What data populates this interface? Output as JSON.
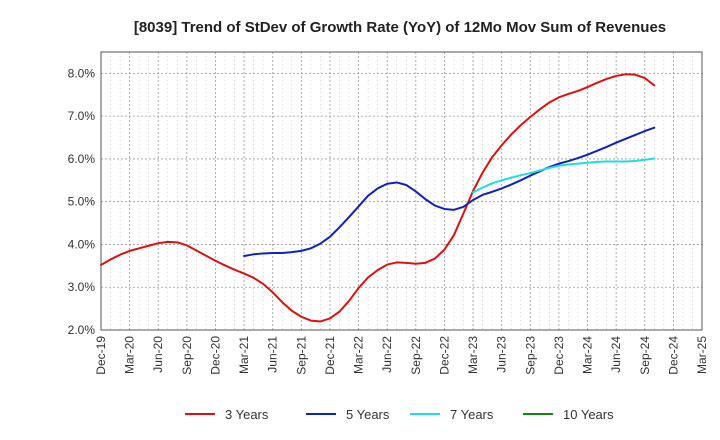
{
  "chart_data": {
    "type": "line",
    "title": "[8039]  Trend of StDev of Growth Rate (YoY) of 12Mo Mov Sum of Revenues",
    "xlabel": "",
    "ylabel": "",
    "ylim": [
      2.0,
      8.5
    ],
    "y_ticks": [
      2.0,
      3.0,
      4.0,
      5.0,
      6.0,
      7.0,
      8.0
    ],
    "y_tick_labels": [
      "2.0%",
      "3.0%",
      "4.0%",
      "5.0%",
      "6.0%",
      "7.0%",
      "8.0%"
    ],
    "x_tick_labels": [
      "Dec-19",
      "Mar-20",
      "Jun-20",
      "Sep-20",
      "Dec-20",
      "Mar-21",
      "Jun-21",
      "Sep-21",
      "Dec-21",
      "Mar-22",
      "Jun-22",
      "Sep-22",
      "Dec-22",
      "Mar-23",
      "Jun-23",
      "Sep-23",
      "Dec-23",
      "Mar-24",
      "Jun-24",
      "Sep-24",
      "Dec-24",
      "Mar-25"
    ],
    "x_range_months": [
      0,
      63
    ],
    "grid": true,
    "legend_position": "bottom",
    "series": [
      {
        "name": "3 Years",
        "color": "#dd1111",
        "start_month": 0,
        "values": [
          3.52,
          3.65,
          3.76,
          3.85,
          3.91,
          3.97,
          4.03,
          4.06,
          4.05,
          3.98,
          3.86,
          3.74,
          3.62,
          3.51,
          3.41,
          3.32,
          3.22,
          3.08,
          2.88,
          2.65,
          2.45,
          2.31,
          2.22,
          2.2,
          2.27,
          2.43,
          2.68,
          2.98,
          3.23,
          3.4,
          3.53,
          3.58,
          3.57,
          3.55,
          3.57,
          3.67,
          3.88,
          4.22,
          4.73,
          5.25,
          5.68,
          6.04,
          6.32,
          6.57,
          6.79,
          6.98,
          7.16,
          7.32,
          7.44,
          7.52,
          7.59,
          7.68,
          7.78,
          7.87,
          7.94,
          7.98,
          7.97,
          7.89,
          7.72
        ]
      },
      {
        "name": "5 Years",
        "color": "#1122bb",
        "start_month": 15,
        "values": [
          3.73,
          3.77,
          3.79,
          3.8,
          3.8,
          3.82,
          3.85,
          3.91,
          4.02,
          4.18,
          4.4,
          4.64,
          4.89,
          5.14,
          5.31,
          5.42,
          5.45,
          5.39,
          5.24,
          5.06,
          4.91,
          4.83,
          4.81,
          4.88,
          5.04,
          5.16,
          5.23,
          5.31,
          5.4,
          5.5,
          5.61,
          5.71,
          5.81,
          5.89,
          5.95,
          6.02,
          6.1,
          6.19,
          6.28,
          6.38,
          6.47,
          6.56,
          6.65,
          6.73
        ]
      },
      {
        "name": "7 Years",
        "color": "#22dddd",
        "start_month": 39,
        "values": [
          5.22,
          5.33,
          5.43,
          5.5,
          5.56,
          5.62,
          5.67,
          5.73,
          5.79,
          5.84,
          5.87,
          5.89,
          5.91,
          5.93,
          5.94,
          5.94,
          5.94,
          5.95,
          5.98,
          6.01
        ]
      },
      {
        "name": "10 Years",
        "color": "#118811",
        "start_month": 0,
        "values": []
      }
    ]
  }
}
